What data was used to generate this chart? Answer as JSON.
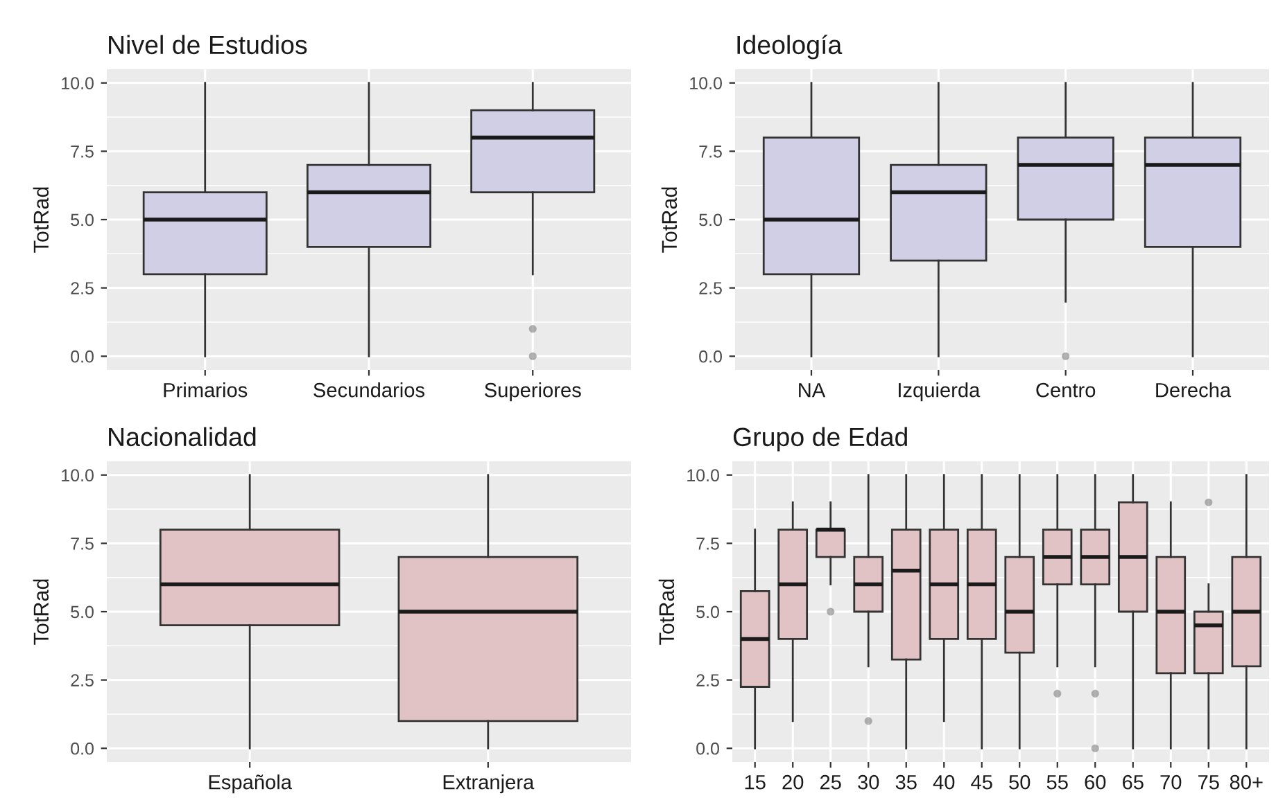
{
  "chart_data": [
    {
      "type": "box",
      "title": "Nivel de Estudios",
      "ylabel": "TotRad",
      "categories": [
        "Primarios",
        "Secundarios",
        "Superiores"
      ],
      "ylim": [
        -0.5,
        10.5
      ],
      "yticks": [
        {
          "value": 0,
          "label": "0.0"
        },
        {
          "value": 2.5,
          "label": "2.5"
        },
        {
          "value": 5,
          "label": "5.0"
        },
        {
          "value": 7.5,
          "label": "7.5"
        },
        {
          "value": 10,
          "label": "10.0"
        }
      ],
      "grid": true,
      "color": "#d0cfe6",
      "boxes": [
        {
          "low": 0,
          "q1": 3,
          "median": 5,
          "q3": 6,
          "high": 10
        },
        {
          "low": 0,
          "q1": 4,
          "median": 6,
          "q3": 7,
          "high": 10
        },
        {
          "low": 3,
          "q1": 6,
          "median": 8,
          "q3": 9,
          "high": 10,
          "outliers": [
            1,
            0
          ]
        }
      ]
    },
    {
      "type": "box",
      "title": "Ideología",
      "ylabel": "TotRad",
      "categories": [
        "NA",
        "Izquierda",
        "Centro",
        "Derecha"
      ],
      "ylim": [
        -0.5,
        10.5
      ],
      "yticks": [
        {
          "value": 0,
          "label": "0.0"
        },
        {
          "value": 2.5,
          "label": "2.5"
        },
        {
          "value": 5,
          "label": "5.0"
        },
        {
          "value": 7.5,
          "label": "7.5"
        },
        {
          "value": 10,
          "label": "10.0"
        }
      ],
      "grid": true,
      "color": "#d0cfe6",
      "boxes": [
        {
          "low": 0,
          "q1": 3,
          "median": 5,
          "q3": 8,
          "high": 10
        },
        {
          "low": 0,
          "q1": 3.5,
          "median": 6,
          "q3": 7,
          "high": 10
        },
        {
          "low": 2,
          "q1": 5,
          "median": 7,
          "q3": 8,
          "high": 10,
          "outliers": [
            0
          ]
        },
        {
          "low": 0,
          "q1": 4,
          "median": 7,
          "q3": 8,
          "high": 10
        }
      ]
    },
    {
      "type": "box",
      "title": "Nacionalidad",
      "ylabel": "TotRad",
      "categories": [
        "Española",
        "Extranjera"
      ],
      "ylim": [
        -0.5,
        10.5
      ],
      "yticks": [
        {
          "value": 0,
          "label": "0.0"
        },
        {
          "value": 2.5,
          "label": "2.5"
        },
        {
          "value": 5,
          "label": "5.0"
        },
        {
          "value": 7.5,
          "label": "7.5"
        },
        {
          "value": 10,
          "label": "10.0"
        }
      ],
      "grid": true,
      "color": "#e2c3c5",
      "boxes": [
        {
          "low": 0,
          "q1": 4.5,
          "median": 6,
          "q3": 8,
          "high": 10
        },
        {
          "low": 0,
          "q1": 1,
          "median": 5,
          "q3": 7,
          "high": 10
        }
      ]
    },
    {
      "type": "box",
      "title": "Grupo de Edad",
      "ylabel": "TotRad",
      "categories": [
        "15",
        "20",
        "25",
        "30",
        "35",
        "40",
        "45",
        "50",
        "55",
        "60",
        "65",
        "70",
        "75",
        "80+"
      ],
      "ylim": [
        -0.5,
        10.5
      ],
      "yticks": [
        {
          "value": 0,
          "label": "0.0"
        },
        {
          "value": 2.5,
          "label": "2.5"
        },
        {
          "value": 5,
          "label": "5.0"
        },
        {
          "value": 7.5,
          "label": "7.5"
        },
        {
          "value": 10,
          "label": "10.0"
        }
      ],
      "grid": true,
      "color": "#e2c3c5",
      "boxes": [
        {
          "low": 0,
          "q1": 2.25,
          "median": 4,
          "q3": 5.75,
          "high": 8
        },
        {
          "low": 1,
          "q1": 4,
          "median": 6,
          "q3": 8,
          "high": 9
        },
        {
          "low": 6,
          "q1": 7,
          "median": 8,
          "q3": 8,
          "high": 9,
          "outliers": [
            5
          ]
        },
        {
          "low": 3,
          "q1": 5,
          "median": 6,
          "q3": 7,
          "high": 10,
          "outliers": [
            1
          ]
        },
        {
          "low": 0,
          "q1": 3.25,
          "median": 6.5,
          "q3": 8,
          "high": 10
        },
        {
          "low": 1,
          "q1": 4,
          "median": 6,
          "q3": 8,
          "high": 10
        },
        {
          "low": 0,
          "q1": 4,
          "median": 6,
          "q3": 8,
          "high": 10
        },
        {
          "low": 0,
          "q1": 3.5,
          "median": 5,
          "q3": 7,
          "high": 10
        },
        {
          "low": 3,
          "q1": 6,
          "median": 7,
          "q3": 8,
          "high": 10,
          "outliers": [
            2
          ]
        },
        {
          "low": 3,
          "q1": 6,
          "median": 7,
          "q3": 8,
          "high": 10,
          "outliers": [
            2,
            0
          ]
        },
        {
          "low": 0,
          "q1": 5,
          "median": 7,
          "q3": 9,
          "high": 10
        },
        {
          "low": 0,
          "q1": 2.75,
          "median": 5,
          "q3": 7,
          "high": 9
        },
        {
          "low": 0,
          "q1": 2.75,
          "median": 4.5,
          "q3": 5,
          "high": 6,
          "outliers": [
            9
          ]
        },
        {
          "low": 0,
          "q1": 3,
          "median": 5,
          "q3": 7,
          "high": 10
        }
      ]
    }
  ]
}
